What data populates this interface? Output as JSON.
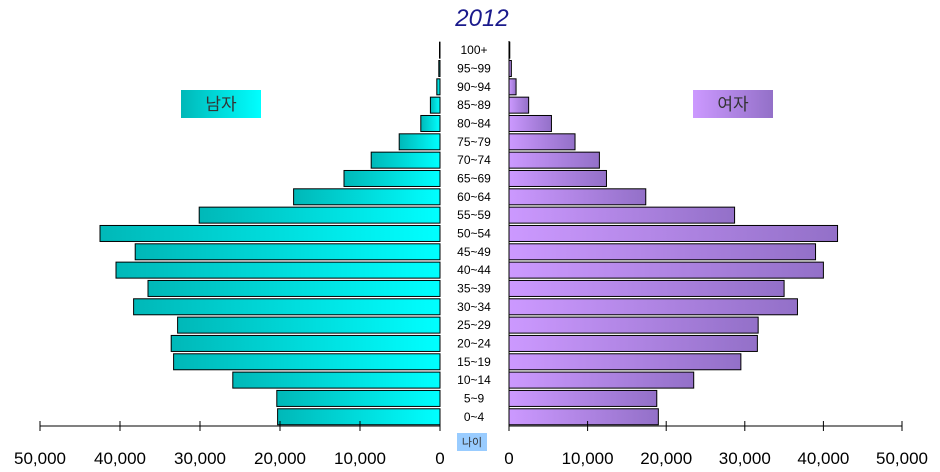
{
  "chart_data": {
    "type": "bar",
    "subtype": "population-pyramid",
    "title": "2012",
    "categories": [
      "100+",
      "95~99",
      "90~94",
      "85~89",
      "80~84",
      "75~79",
      "70~74",
      "65~69",
      "60~64",
      "55~59",
      "50~54",
      "45~49",
      "40~44",
      "35~39",
      "30~34",
      "25~29",
      "20~24",
      "15~19",
      "10~14",
      "5~9",
      "0~4"
    ],
    "series": [
      {
        "name": "남자",
        "values": [
          50,
          150,
          400,
          1200,
          2400,
          5100,
          8600,
          12000,
          18300,
          30100,
          42500,
          38100,
          40500,
          36500,
          38300,
          32800,
          33600,
          33300,
          25900,
          20400,
          20300
        ]
      },
      {
        "name": "여자",
        "values": [
          100,
          300,
          900,
          2500,
          5400,
          8400,
          11500,
          12400,
          17400,
          28700,
          41800,
          39000,
          40000,
          35000,
          36700,
          31700,
          31600,
          29500,
          23500,
          18800,
          19000
        ]
      }
    ],
    "xlim": [
      0,
      50000
    ],
    "xticks": [
      "50,000",
      "40,000",
      "30,000",
      "20,000",
      "10,000",
      "0",
      "0",
      "10,000",
      "20,000",
      "30,000",
      "40,000",
      "50,000"
    ],
    "ylabel": "나이",
    "colors": {
      "male_light": "#00ffff",
      "male_dark": "#00b8b8",
      "female_light": "#cc99ff",
      "female_dark": "#9370c8",
      "title": "#1a1a8c"
    },
    "legend": {
      "male_label": "남자",
      "female_label": "여자",
      "placement": "upper-sides"
    }
  }
}
